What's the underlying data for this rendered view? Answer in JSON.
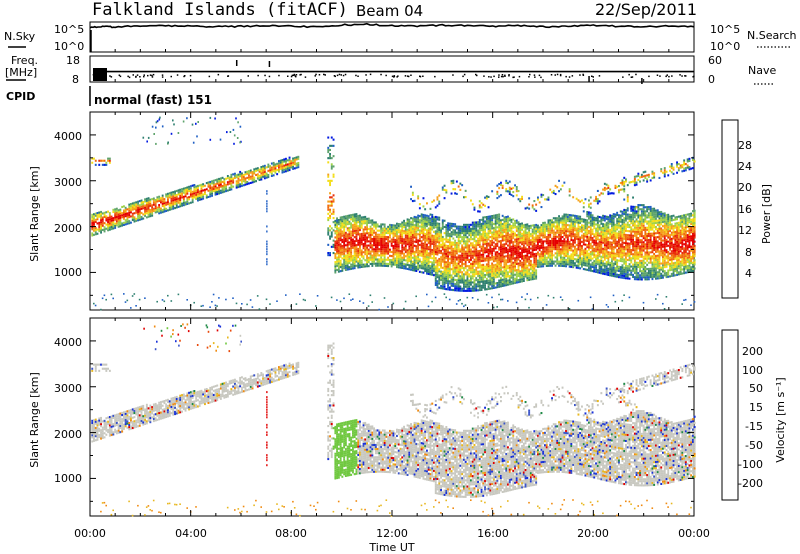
{
  "header": {
    "title": "Falkland Islands (fitACF)",
    "beam": "Beam 04",
    "date": "22/Sep/2011"
  },
  "colors": {
    "power_scale": [
      "#0018e0",
      "#1f5fc4",
      "#2f8070",
      "#5ea36b",
      "#9fd248",
      "#f3dd18",
      "#f5a11a",
      "#f06a10",
      "#e8300c",
      "#e60000"
    ],
    "velocity_scale": [
      "#1830d8",
      "#3a54c9",
      "#1e8a46",
      "#70c840",
      "#c8c8c0",
      "#e8b820",
      "#f08a10",
      "#e84a0c",
      "#e00000"
    ]
  },
  "chart_data": [
    {
      "type": "line",
      "name": "nsky-nsearch",
      "ylabel_left": "N.Sky",
      "ylabel_right": "N.Search",
      "left_ticks": [
        "10^5",
        "10^0"
      ],
      "right_ticks": [
        "10^5",
        "10^0"
      ],
      "ylim": [
        0,
        5
      ],
      "x_hours": [
        0,
        0.5,
        1,
        2,
        3,
        4,
        5,
        6,
        7,
        8,
        9,
        10,
        11,
        12,
        13,
        14,
        15,
        16,
        17,
        18,
        19,
        20,
        21,
        22,
        23,
        24
      ],
      "values": [
        4.1,
        4.2,
        4.2,
        4.3,
        4.4,
        4.3,
        4.2,
        4.3,
        4.4,
        4.3,
        4.2,
        4.5,
        4.6,
        4.4,
        4.3,
        4.5,
        4.4,
        4.3,
        4.4,
        4.2,
        4.3,
        4.4,
        4.3,
        4.2,
        4.3,
        4.2
      ]
    },
    {
      "type": "scatter",
      "name": "freq-nave",
      "ylabel_left": "Freq.",
      "ylabel_left_unit": "[MHz]",
      "ylabel_right": "Nave",
      "left_ticks": [
        "18",
        "8"
      ],
      "right_ticks": [
        "60",
        "0"
      ],
      "freq_mhz": 12
    },
    {
      "type": "table",
      "name": "cpid",
      "label": "CPID",
      "value": "normal (fast) 151"
    },
    {
      "type": "heatmap",
      "name": "power",
      "ylabel": "Slant Range [km]",
      "colorbar_label": "Power [dB]",
      "colorbar_ticks": [
        "28",
        "24",
        "20",
        "16",
        "12",
        "8",
        "4"
      ],
      "y_ticks": [
        "4000",
        "3000",
        "2000",
        "1000"
      ],
      "ylim_km": [
        180,
        4500
      ],
      "xlim_hours": [
        0,
        24
      ]
    },
    {
      "type": "heatmap",
      "name": "velocity",
      "ylabel": "Slant Range [km]",
      "colorbar_label": "Velocity [m s⁻¹]",
      "colorbar_ticks": [
        "200",
        "100",
        "50",
        "15",
        "-15",
        "-50",
        "-100",
        "-200"
      ],
      "y_ticks": [
        "4000",
        "3000",
        "2000",
        "1000"
      ],
      "ylim_km": [
        180,
        4500
      ],
      "xlim_hours": [
        0,
        24
      ]
    },
    {
      "type": "axis",
      "name": "time-axis",
      "xlabel": "Time UT",
      "x_ticks": [
        "00:00",
        "04:00",
        "08:00",
        "12:00",
        "16:00",
        "20:00",
        "00:00"
      ]
    }
  ]
}
